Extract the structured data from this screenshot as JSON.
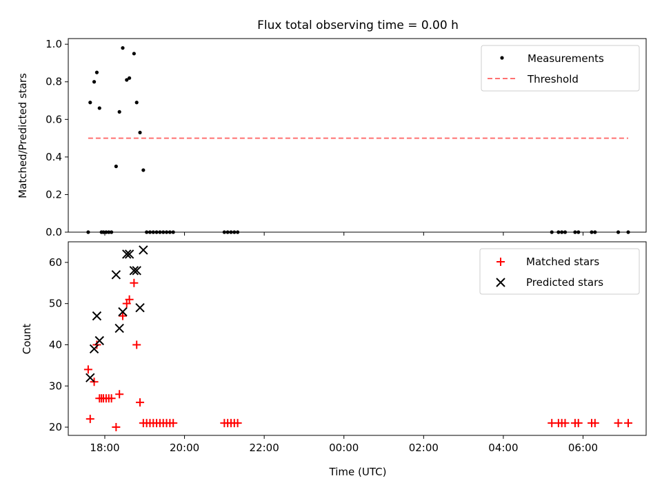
{
  "figure": {
    "title": "Flux total observing time = 0.00 h"
  },
  "chart_data": [
    {
      "type": "scatter",
      "panel": "top",
      "ylabel": "Matched/Predicted stars",
      "xlabel": "",
      "ylim": [
        0,
        1.03
      ],
      "yticks": [
        0.0,
        0.2,
        0.4,
        0.6,
        0.8,
        1.0
      ],
      "ytick_labels": [
        "0.0",
        "0.2",
        "0.4",
        "0.6",
        "0.8",
        "1.0"
      ],
      "grid": false,
      "legend_position": "top-right",
      "series": [
        {
          "name": "Measurements",
          "marker": "dot",
          "color": "#000000",
          "points": [
            [
              "17:35",
              0.0
            ],
            [
              "17:38",
              0.69
            ],
            [
              "17:44",
              0.8
            ],
            [
              "17:48",
              0.85
            ],
            [
              "17:52",
              0.66
            ],
            [
              "17:55",
              0.0
            ],
            [
              "17:58",
              0.0
            ],
            [
              "18:02",
              0.0
            ],
            [
              "18:06",
              0.0
            ],
            [
              "18:10",
              0.0
            ],
            [
              "18:17",
              0.35
            ],
            [
              "18:22",
              0.64
            ],
            [
              "18:27",
              0.98
            ],
            [
              "18:33",
              0.81
            ],
            [
              "18:37",
              0.82
            ],
            [
              "18:44",
              0.95
            ],
            [
              "18:48",
              0.69
            ],
            [
              "18:53",
              0.53
            ],
            [
              "18:58",
              0.33
            ],
            [
              "19:03",
              0.0
            ],
            [
              "19:08",
              0.0
            ],
            [
              "19:13",
              0.0
            ],
            [
              "19:18",
              0.0
            ],
            [
              "19:23",
              0.0
            ],
            [
              "19:28",
              0.0
            ],
            [
              "19:33",
              0.0
            ],
            [
              "19:38",
              0.0
            ],
            [
              "19:43",
              0.0
            ],
            [
              "21:00",
              0.0
            ],
            [
              "21:05",
              0.0
            ],
            [
              "21:10",
              0.0
            ],
            [
              "21:15",
              0.0
            ],
            [
              "21:20",
              0.0
            ],
            [
              "05:13",
              0.0
            ],
            [
              "05:23",
              0.0
            ],
            [
              "05:28",
              0.0
            ],
            [
              "05:33",
              0.0
            ],
            [
              "05:48",
              0.0
            ],
            [
              "05:53",
              0.0
            ],
            [
              "06:13",
              0.0
            ],
            [
              "06:18",
              0.0
            ],
            [
              "06:53",
              0.0
            ],
            [
              "07:08",
              0.0
            ]
          ]
        },
        {
          "name": "Threshold",
          "style": "dashed",
          "color": "#ff7070",
          "x": [
            "17:35",
            "07:08"
          ],
          "y": [
            0.5,
            0.5
          ]
        }
      ]
    },
    {
      "type": "scatter",
      "panel": "bottom",
      "xlabel": "Time (UTC)",
      "ylabel": "Count",
      "ylim": [
        18,
        65
      ],
      "yticks": [
        20,
        30,
        40,
        50,
        60
      ],
      "ytick_labels": [
        "20",
        "30",
        "40",
        "50",
        "60"
      ],
      "xlim": [
        "17:05",
        "07:35"
      ],
      "xticks": [
        "18:00",
        "20:00",
        "22:00",
        "00:00",
        "02:00",
        "04:00",
        "06:00"
      ],
      "xtick_labels": [
        "18:00",
        "20:00",
        "22:00",
        "00:00",
        "02:00",
        "04:00",
        "06:00"
      ],
      "grid": false,
      "legend_position": "top-right",
      "series": [
        {
          "name": "Matched stars",
          "marker": "plus",
          "color": "#ff0000",
          "points": [
            [
              "17:35",
              34
            ],
            [
              "17:38",
              22
            ],
            [
              "17:44",
              31
            ],
            [
              "17:48",
              40
            ],
            [
              "17:52",
              27
            ],
            [
              "17:55",
              27
            ],
            [
              "17:58",
              27
            ],
            [
              "18:02",
              27
            ],
            [
              "18:06",
              27
            ],
            [
              "18:10",
              27
            ],
            [
              "18:17",
              20
            ],
            [
              "18:22",
              28
            ],
            [
              "18:27",
              47
            ],
            [
              "18:33",
              50
            ],
            [
              "18:37",
              51
            ],
            [
              "18:44",
              55
            ],
            [
              "18:48",
              40
            ],
            [
              "18:53",
              26
            ],
            [
              "18:58",
              21
            ],
            [
              "19:03",
              21
            ],
            [
              "19:08",
              21
            ],
            [
              "19:13",
              21
            ],
            [
              "19:18",
              21
            ],
            [
              "19:23",
              21
            ],
            [
              "19:28",
              21
            ],
            [
              "19:33",
              21
            ],
            [
              "19:38",
              21
            ],
            [
              "19:43",
              21
            ],
            [
              "21:00",
              21
            ],
            [
              "21:05",
              21
            ],
            [
              "21:10",
              21
            ],
            [
              "21:15",
              21
            ],
            [
              "21:20",
              21
            ],
            [
              "05:13",
              21
            ],
            [
              "05:23",
              21
            ],
            [
              "05:28",
              21
            ],
            [
              "05:33",
              21
            ],
            [
              "05:48",
              21
            ],
            [
              "05:53",
              21
            ],
            [
              "06:13",
              21
            ],
            [
              "06:18",
              21
            ],
            [
              "06:53",
              21
            ],
            [
              "07:08",
              21
            ]
          ]
        },
        {
          "name": "Predicted stars",
          "marker": "x",
          "color": "#000000",
          "points": [
            [
              "17:38",
              32
            ],
            [
              "17:44",
              39
            ],
            [
              "17:48",
              47
            ],
            [
              "17:52",
              41
            ],
            [
              "18:17",
              57
            ],
            [
              "18:22",
              44
            ],
            [
              "18:27",
              48
            ],
            [
              "18:33",
              62
            ],
            [
              "18:37",
              62
            ],
            [
              "18:44",
              58
            ],
            [
              "18:48",
              58
            ],
            [
              "18:53",
              49
            ],
            [
              "18:58",
              63
            ]
          ]
        }
      ]
    }
  ]
}
